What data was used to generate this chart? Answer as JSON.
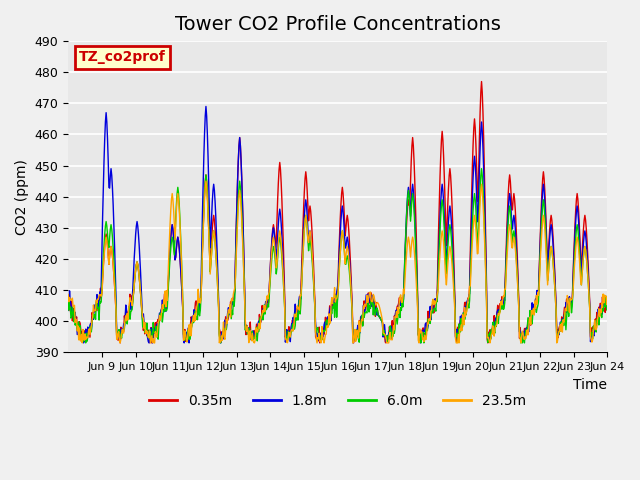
{
  "title": "Tower CO2 Profile Concentrations",
  "ylabel": "CO2 (ppm)",
  "xlabel": "Time",
  "ylim": [
    390,
    490
  ],
  "yticks": [
    390,
    400,
    410,
    420,
    430,
    440,
    450,
    460,
    470,
    480,
    490
  ],
  "xtick_labels": [
    "Jun 9",
    "Jun 10",
    "Jun 11",
    "Jun 12",
    "Jun 13",
    "Jun 14",
    "Jun 15",
    "Jun 16",
    "Jun 17",
    "Jun 18",
    "Jun 19",
    "Jun 20",
    "Jun 21",
    "Jun 22",
    "Jun 23",
    "Jun 24"
  ],
  "colors": {
    "0.35m": "#dd0000",
    "1.8m": "#0000dd",
    "6.0m": "#00cc00",
    "23.5m": "#ffa500"
  },
  "legend_labels": [
    "0.35m",
    "1.8m",
    "6.0m",
    "23.5m"
  ],
  "annotation_text": "TZ_co2prof",
  "annotation_bg": "#ffffcc",
  "annotation_edge": "#cc0000",
  "bg_color": "#e8e8e8",
  "grid_color": "#ffffff",
  "title_fontsize": 14
}
